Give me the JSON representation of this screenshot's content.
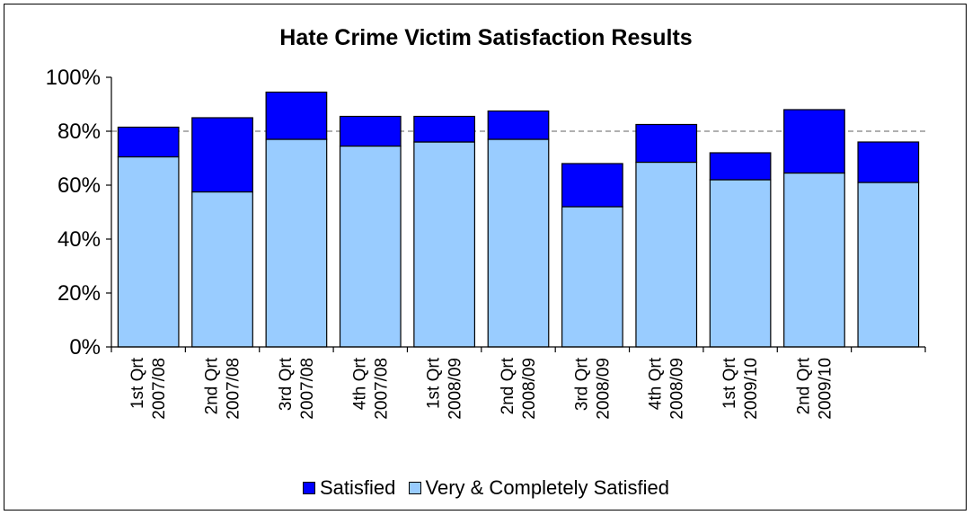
{
  "chart_data": {
    "type": "bar",
    "stacked": true,
    "title": "Hate Crime Victim Satisfaction Results",
    "xlabel": "",
    "ylabel": "",
    "ylim": [
      0,
      100
    ],
    "yticks": [
      "0%",
      "20%",
      "40%",
      "60%",
      "80%",
      "100%"
    ],
    "categories": [
      [
        "1st Qrt",
        "2007/08"
      ],
      [
        "2nd Qrt",
        "2007/08"
      ],
      [
        "3rd Qrt",
        "2007/08"
      ],
      [
        "4th Qrt",
        "2007/08"
      ],
      [
        "1st Qrt",
        "2008/09"
      ],
      [
        "2nd Qrt",
        "2008/09"
      ],
      [
        "3rd Qrt",
        "2008/09"
      ],
      [
        "4th Qrt",
        "2008/09"
      ],
      [
        "1st Qrt",
        "2009/10"
      ],
      [
        "2nd Qrt",
        "2009/10"
      ],
      [
        "",
        ""
      ]
    ],
    "series": [
      {
        "name": "Very & Completely Satisfied",
        "color": "#99ccff",
        "values": [
          70.5,
          57.5,
          77,
          74.5,
          76,
          77,
          52,
          68.5,
          62,
          64.5,
          61
        ]
      },
      {
        "name": "Satisfied",
        "color": "#0000ff",
        "values": [
          11,
          27.5,
          17.5,
          11,
          9.5,
          10.5,
          16,
          14,
          10,
          23.5,
          15
        ]
      }
    ],
    "reference_line": {
      "value": 80,
      "style": "dashed",
      "color": "#808080"
    },
    "grid": false,
    "legend_position": "bottom",
    "legend_order": [
      "Satisfied",
      "Very & Completely Satisfied"
    ]
  }
}
